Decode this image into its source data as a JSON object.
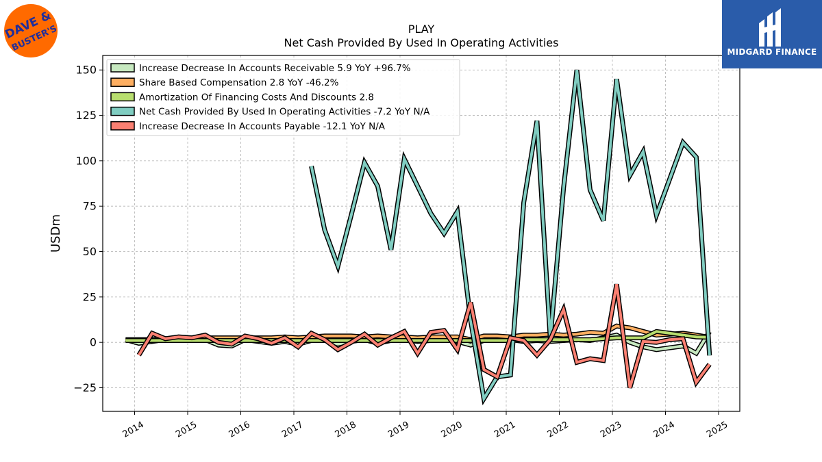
{
  "chart_data": {
    "type": "line",
    "title": "PLAY",
    "subtitle": "Net Cash Provided By Used In Operating Activities",
    "ylabel": "USDm",
    "xlabel": "",
    "ylim": [
      -38,
      158
    ],
    "xlim": [
      2013.4,
      2025.4
    ],
    "yticks": [
      -25,
      0,
      25,
      50,
      75,
      100,
      125,
      150
    ],
    "xticks": [
      2014,
      2015,
      2016,
      2017,
      2018,
      2019,
      2020,
      2021,
      2022,
      2023,
      2024,
      2025
    ],
    "grid": true,
    "legend_position": "top-left",
    "series": [
      {
        "name": "Increase Decrease In Accounts Receivable  5.9 YoY +96.7%",
        "color": "#c7e9c0",
        "x": [
          2013.83,
          2014.08,
          2014.33,
          2014.58,
          2014.83,
          2015.08,
          2015.33,
          2015.58,
          2015.83,
          2016.08,
          2016.33,
          2016.58,
          2016.83,
          2017.08,
          2017.33,
          2017.58,
          2017.83,
          2018.08,
          2018.33,
          2018.58,
          2018.83,
          2019.08,
          2019.33,
          2019.58,
          2019.83,
          2020.08,
          2020.33,
          2020.58,
          2020.83,
          2021.08,
          2021.33,
          2021.58,
          2021.83,
          2022.08,
          2022.33,
          2022.58,
          2022.83,
          2023.08,
          2023.33,
          2023.58,
          2023.83,
          2024.08,
          2024.33,
          2024.58,
          2024.83
        ],
        "values": [
          1.5,
          -0.5,
          0.5,
          1.5,
          1,
          1,
          1.5,
          -1.5,
          -2,
          1.5,
          0.5,
          -0.5,
          0.5,
          -1,
          1,
          1.5,
          -1,
          0.5,
          1.5,
          -0.5,
          1,
          1.5,
          0.5,
          1,
          1.5,
          0.5,
          -1.5,
          1,
          1,
          1.5,
          0.5,
          1,
          0.5,
          1,
          1.5,
          1,
          2.5,
          4,
          0,
          -2.5,
          -4,
          -3,
          -2,
          -6,
          5.9
        ]
      },
      {
        "name": "Share Based Compensation  2.8 YoY -46.2%",
        "color": "#fdae61",
        "x": [
          2013.83,
          2014.08,
          2014.33,
          2014.58,
          2014.83,
          2015.08,
          2015.33,
          2015.58,
          2015.83,
          2016.08,
          2016.33,
          2016.58,
          2016.83,
          2017.08,
          2017.33,
          2017.58,
          2017.83,
          2018.08,
          2018.33,
          2018.58,
          2018.83,
          2019.08,
          2019.33,
          2019.58,
          2019.83,
          2020.08,
          2020.33,
          2020.58,
          2020.83,
          2021.08,
          2021.33,
          2021.58,
          2021.83,
          2022.08,
          2022.33,
          2022.58,
          2022.83,
          2023.08,
          2023.33,
          2023.58,
          2023.83,
          2024.08,
          2024.33,
          2024.58,
          2024.83
        ],
        "values": [
          1.5,
          1.5,
          1.5,
          2,
          2,
          2,
          2.5,
          2.5,
          2.5,
          2.5,
          2.5,
          2.5,
          3,
          2.5,
          3,
          3.5,
          3.5,
          3.5,
          3,
          3.5,
          3,
          3,
          2.5,
          3,
          3,
          3,
          1.5,
          3.5,
          3.5,
          3,
          4,
          4,
          4.5,
          4,
          4.5,
          5.5,
          5,
          9,
          8,
          6,
          4,
          4.5,
          5,
          4,
          2.8
        ]
      },
      {
        "name": "Amortization Of Financing Costs And Discounts  2.8",
        "color": "#b8de6f",
        "x": [
          2013.83,
          2014.08,
          2014.33,
          2014.58,
          2014.83,
          2015.08,
          2015.33,
          2015.58,
          2015.83,
          2016.08,
          2016.33,
          2016.58,
          2016.83,
          2017.08,
          2017.33,
          2017.58,
          2017.83,
          2018.08,
          2018.33,
          2018.58,
          2018.83,
          2019.08,
          2019.33,
          2019.58,
          2019.83,
          2020.08,
          2020.33,
          2020.58,
          2020.83,
          2021.08,
          2021.33,
          2021.58,
          2021.83,
          2022.08,
          2022.33,
          2022.58,
          2022.83,
          2023.08,
          2023.33,
          2023.58,
          2023.83,
          2024.08,
          2024.33,
          2024.58,
          2024.83
        ],
        "values": [
          1,
          1,
          1,
          1,
          1,
          1,
          1,
          1,
          1,
          1,
          1,
          1,
          1,
          1,
          1,
          1,
          1,
          1,
          1,
          1,
          1,
          1,
          1,
          1,
          1,
          1,
          1,
          1,
          1,
          1,
          1.5,
          1.5,
          1.5,
          1.5,
          1.5,
          1.5,
          2,
          2.5,
          2.5,
          2.5,
          6,
          5,
          4,
          3,
          2.8
        ]
      },
      {
        "name": "Net Cash Provided By Used In Operating Activities  -7.2 YoY N/A",
        "color": "#80cdc1",
        "x": [
          2017.33,
          2017.58,
          2017.83,
          2018.08,
          2018.33,
          2018.58,
          2018.83,
          2019.08,
          2019.33,
          2019.58,
          2019.83,
          2020.08,
          2020.33,
          2020.58,
          2020.83,
          2021.08,
          2021.33,
          2021.58,
          2021.83,
          2022.08,
          2022.33,
          2022.58,
          2022.83,
          2023.08,
          2023.33,
          2023.58,
          2023.83,
          2024.08,
          2024.33,
          2024.58,
          2024.83
        ],
        "values": [
          97,
          62,
          42,
          70,
          99,
          86,
          51,
          101,
          86,
          71,
          60,
          72,
          12,
          -31,
          -19,
          -18,
          77,
          122,
          2,
          85,
          150,
          84,
          67,
          145,
          92,
          105,
          70,
          90,
          110,
          102,
          -7.2
        ]
      },
      {
        "name": "Increase Decrease In Accounts Payable  -12.1 YoY N/A",
        "color": "#fb8072",
        "x": [
          2014.08,
          2014.33,
          2014.58,
          2014.83,
          2015.08,
          2015.33,
          2015.58,
          2015.83,
          2016.08,
          2016.33,
          2016.58,
          2016.83,
          2017.08,
          2017.33,
          2017.58,
          2017.83,
          2018.08,
          2018.33,
          2018.58,
          2018.83,
          2019.08,
          2019.33,
          2019.58,
          2019.83,
          2020.08,
          2020.33,
          2020.58,
          2020.83,
          2021.08,
          2021.33,
          2021.58,
          2021.83,
          2022.08,
          2022.33,
          2022.58,
          2022.83,
          2023.08,
          2023.33,
          2023.58,
          2023.83,
          2024.08,
          2024.33,
          2024.58,
          2024.83
        ],
        "values": [
          -7,
          5,
          2,
          3,
          2.5,
          4,
          0,
          -1,
          3.5,
          2,
          -0.5,
          2.5,
          -2.5,
          5,
          1.5,
          -4,
          0,
          4.5,
          -1.5,
          2.5,
          6,
          -6,
          5.5,
          6.5,
          -4,
          22,
          -15,
          -19,
          2.5,
          1,
          -7,
          1.5,
          18,
          -11,
          -9,
          -10,
          32,
          -25,
          0.5,
          0,
          1.5,
          2,
          -22,
          -12.1
        ]
      }
    ]
  },
  "logos": {
    "left": {
      "icon": "dave-and-busters-logo",
      "text_top": "DAVE &",
      "text_bottom": "BUSTER'S",
      "bg": "#ff6a00",
      "fg": "#1f2e9c"
    },
    "right": {
      "icon": "midgard-finance-logo",
      "text": "MIDGARD FINANCE",
      "bg": "#2a5caa"
    }
  }
}
